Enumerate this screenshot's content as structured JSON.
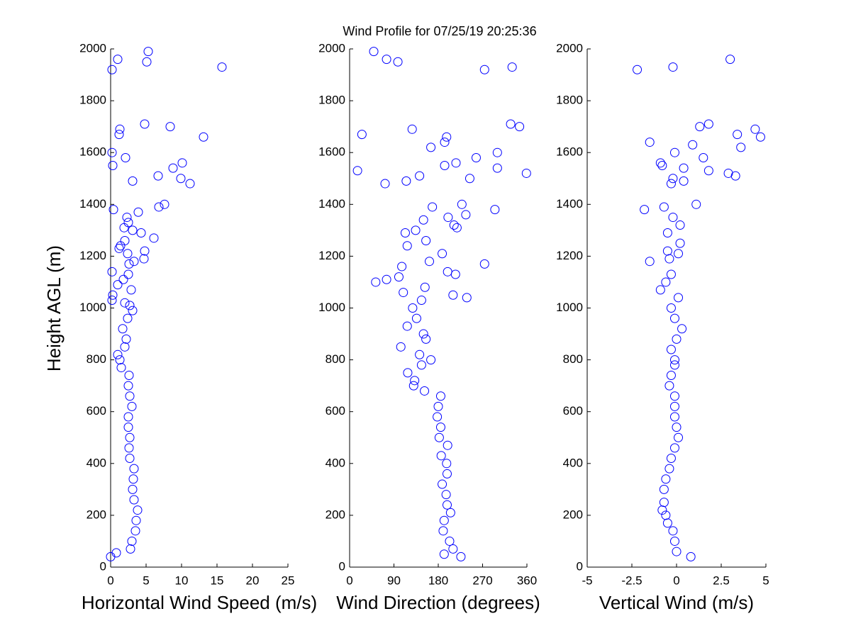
{
  "chart_data": [
    {
      "type": "scatter",
      "title": "Wind Profile for  07/25/19 20:25:36",
      "xlabel": "Horizontal Wind Speed (m/s)",
      "ylabel": "Height AGL (m)",
      "color": "#0000ff",
      "xlim": [
        0,
        25
      ],
      "xticks": [
        0,
        5,
        10,
        15,
        20,
        25
      ],
      "ylim": [
        0,
        2000
      ],
      "yticks": [
        0,
        200,
        400,
        600,
        800,
        1000,
        1200,
        1400,
        1600,
        1800,
        2000
      ],
      "x": [
        0.0,
        0.8,
        2.8,
        3.0,
        3.5,
        3.6,
        3.8,
        3.3,
        3.1,
        3.2,
        3.3,
        2.7,
        2.6,
        2.7,
        2.5,
        2.5,
        3.0,
        2.7,
        2.5,
        2.6,
        1.5,
        1.3,
        1.0,
        2.0,
        2.2,
        1.7,
        2.4,
        3.1,
        2.7,
        2.0,
        0.2,
        0.3,
        2.9,
        1.0,
        1.8,
        2.5,
        0.2,
        2.6,
        3.3,
        4.7,
        2.4,
        4.8,
        1.2,
        1.4,
        2.0,
        6.1,
        4.3,
        3.1,
        1.9,
        2.5,
        2.3,
        3.9,
        0.4,
        6.8,
        7.6,
        11.2,
        3.1,
        9.9,
        6.7,
        8.8,
        10.1,
        2.1,
        0.3,
        0.2,
        13.1,
        1.2,
        1.3,
        8.4,
        4.8,
        0.2,
        15.7,
        5.1,
        1.0,
        5.3
      ],
      "values": [
        40,
        55,
        70,
        100,
        140,
        180,
        220,
        260,
        300,
        340,
        380,
        420,
        460,
        500,
        540,
        580,
        620,
        660,
        700,
        740,
        770,
        800,
        820,
        850,
        880,
        920,
        960,
        990,
        1010,
        1020,
        1030,
        1050,
        1070,
        1090,
        1110,
        1130,
        1140,
        1170,
        1180,
        1190,
        1210,
        1220,
        1230,
        1240,
        1260,
        1270,
        1290,
        1300,
        1310,
        1330,
        1350,
        1370,
        1380,
        1390,
        1400,
        1480,
        1490,
        1500,
        1510,
        1540,
        1560,
        1580,
        1550,
        1600,
        1660,
        1670,
        1690,
        1700,
        1710,
        1920,
        1930,
        1950,
        1960,
        1990
      ]
    },
    {
      "type": "scatter",
      "xlabel": "Wind Direction (degrees)",
      "color": "#0000ff",
      "xlim": [
        0,
        360
      ],
      "xticks": [
        0,
        90,
        180,
        270,
        360
      ],
      "ylim": [
        0,
        2000
      ],
      "yticks": [
        0,
        200,
        400,
        600,
        800,
        1000,
        1200,
        1400,
        1600,
        1800,
        2000
      ],
      "x": [
        226,
        192,
        210,
        203,
        190,
        192,
        205,
        198,
        196,
        188,
        198,
        197,
        186,
        199,
        182,
        185,
        178,
        180,
        185,
        152,
        130,
        132,
        118,
        146,
        165,
        142,
        104,
        155,
        150,
        117,
        136,
        128,
        146,
        210,
        238,
        109,
        153,
        53,
        75,
        100,
        215,
        199,
        106,
        274,
        162,
        188,
        117,
        155,
        113,
        134,
        218,
        212,
        150,
        200,
        236,
        168,
        295,
        228,
        72,
        115,
        244,
        142,
        359,
        16,
        300,
        193,
        216,
        257,
        300,
        165,
        193,
        197,
        25,
        127,
        345,
        327,
        274,
        330,
        98,
        75,
        49
      ],
      "values": [
        40,
        50,
        70,
        100,
        140,
        180,
        210,
        240,
        280,
        320,
        360,
        400,
        430,
        470,
        500,
        540,
        580,
        620,
        660,
        680,
        700,
        720,
        750,
        780,
        800,
        820,
        850,
        880,
        900,
        930,
        960,
        1000,
        1030,
        1050,
        1040,
        1060,
        1080,
        1100,
        1110,
        1120,
        1130,
        1140,
        1160,
        1170,
        1180,
        1210,
        1240,
        1260,
        1290,
        1300,
        1310,
        1320,
        1340,
        1350,
        1360,
        1390,
        1380,
        1400,
        1480,
        1490,
        1500,
        1510,
        1520,
        1530,
        1540,
        1550,
        1560,
        1580,
        1600,
        1620,
        1640,
        1660,
        1670,
        1690,
        1700,
        1710,
        1920,
        1930,
        1950,
        1960,
        1990
      ]
    },
    {
      "type": "scatter",
      "xlabel": "Vertical Wind (m/s)",
      "color": "#0000ff",
      "xlim": [
        -5,
        5
      ],
      "xticks": [
        -5,
        -2.5,
        0,
        2.5,
        5
      ],
      "ylim": [
        0,
        2000
      ],
      "yticks": [
        0,
        200,
        400,
        600,
        800,
        1000,
        1200,
        1400,
        1600,
        1800,
        2000
      ],
      "x": [
        0.8,
        0.0,
        -0.1,
        -0.2,
        -0.5,
        -0.6,
        -0.8,
        -0.7,
        -0.7,
        -0.6,
        -0.4,
        -0.3,
        -0.1,
        0.1,
        0.0,
        -0.1,
        -0.1,
        -0.1,
        -0.4,
        -0.3,
        -0.1,
        -0.1,
        -0.3,
        0.0,
        0.3,
        -0.1,
        -0.3,
        0.1,
        -0.9,
        -0.6,
        -0.3,
        -1.5,
        -0.4,
        0.1,
        -0.5,
        0.2,
        -0.5,
        0.2,
        -0.2,
        -1.8,
        -0.7,
        1.1,
        -0.3,
        0.4,
        -0.2,
        3.3,
        2.9,
        1.8,
        0.4,
        -0.8,
        -0.9,
        1.5,
        -0.1,
        3.6,
        0.9,
        -1.5,
        4.7,
        3.4,
        4.4,
        1.3,
        1.8,
        -2.2,
        -0.2,
        3.0
      ],
      "values": [
        40,
        60,
        100,
        140,
        170,
        200,
        220,
        250,
        300,
        340,
        380,
        420,
        460,
        500,
        540,
        580,
        620,
        660,
        700,
        740,
        780,
        800,
        840,
        880,
        920,
        960,
        1000,
        1040,
        1070,
        1100,
        1130,
        1180,
        1190,
        1210,
        1220,
        1250,
        1290,
        1320,
        1350,
        1380,
        1390,
        1400,
        1480,
        1490,
        1500,
        1510,
        1520,
        1530,
        1540,
        1550,
        1560,
        1580,
        1600,
        1620,
        1630,
        1640,
        1660,
        1670,
        1690,
        1700,
        1710,
        1920,
        1930,
        1960
      ]
    }
  ]
}
